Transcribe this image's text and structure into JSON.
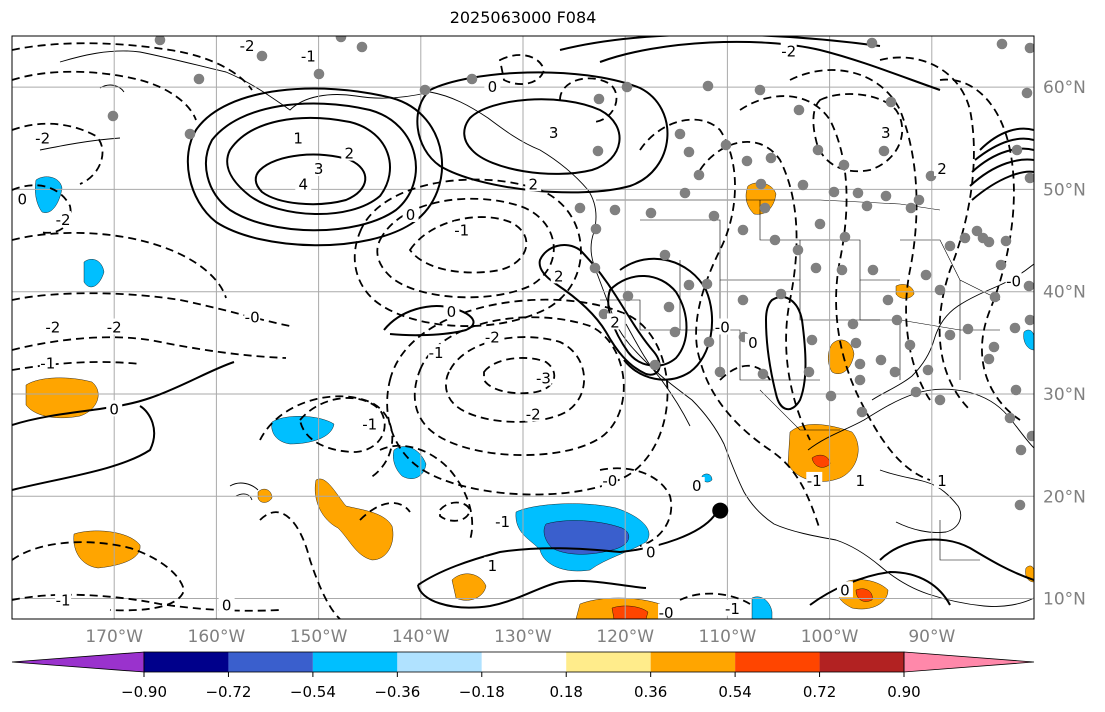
{
  "map": {
    "title": "2025063000 F084",
    "lon_ticks": [
      {
        "label": "170°W",
        "lon": -170
      },
      {
        "label": "160°W",
        "lon": -160
      },
      {
        "label": "150°W",
        "lon": -150
      },
      {
        "label": "140°W",
        "lon": -140
      },
      {
        "label": "130°W",
        "lon": -130
      },
      {
        "label": "120°W",
        "lon": -120
      },
      {
        "label": "110°W",
        "lon": -110
      },
      {
        "label": "100°W",
        "lon": -100
      },
      {
        "label": "90°W",
        "lon": -90
      }
    ],
    "lat_ticks": [
      {
        "label": "60°N",
        "lat": 60
      },
      {
        "label": "50°N",
        "lat": 50
      },
      {
        "label": "40°N",
        "lat": 40
      },
      {
        "label": "30°N",
        "lat": 30
      },
      {
        "label": "20°N",
        "lat": 20
      },
      {
        "label": "10°N",
        "lat": 10
      }
    ],
    "extent": {
      "lon_min": -180,
      "lon_max": -80,
      "lat_min": 8,
      "lat_max": 65
    },
    "tick_color": "#808080",
    "storm_marker": {
      "lon": -110.7,
      "lat": 18.6,
      "color": "#000000"
    },
    "contour_labels": [
      {
        "text": "-2",
        "lon": -157,
        "lat": 64
      },
      {
        "text": "-2",
        "lon": -104,
        "lat": 63.5
      },
      {
        "text": "-1",
        "lon": -151,
        "lat": 63
      },
      {
        "text": "0",
        "lon": -133,
        "lat": 60
      },
      {
        "text": "3",
        "lon": -127,
        "lat": 55.5
      },
      {
        "text": "-2",
        "lon": -177,
        "lat": 55
      },
      {
        "text": "1",
        "lon": -152,
        "lat": 55
      },
      {
        "text": "2",
        "lon": -147,
        "lat": 53.5
      },
      {
        "text": "3",
        "lon": -150,
        "lat": 52
      },
      {
        "text": "4",
        "lon": -151.5,
        "lat": 50.5
      },
      {
        "text": "2",
        "lon": -129,
        "lat": 50.5
      },
      {
        "text": "3",
        "lon": -94.5,
        "lat": 55.5
      },
      {
        "text": "0",
        "lon": -179,
        "lat": 49
      },
      {
        "text": "-2",
        "lon": -175,
        "lat": 47
      },
      {
        "text": "0",
        "lon": -141,
        "lat": 47.5
      },
      {
        "text": "-1",
        "lon": -136,
        "lat": 46
      },
      {
        "text": "2",
        "lon": -126.5,
        "lat": 41.5
      },
      {
        "text": "0",
        "lon": -137,
        "lat": 38
      },
      {
        "text": "-0",
        "lon": -156.5,
        "lat": 37.5
      },
      {
        "text": "-2",
        "lon": -176,
        "lat": 36.5
      },
      {
        "text": "-2",
        "lon": -170,
        "lat": 36.5
      },
      {
        "text": "-1",
        "lon": -176.5,
        "lat": 33
      },
      {
        "text": "-1",
        "lon": -138.5,
        "lat": 34
      },
      {
        "text": "-2",
        "lon": -133,
        "lat": 35.5
      },
      {
        "text": "-3",
        "lon": -128,
        "lat": 31.5
      },
      {
        "text": "-2",
        "lon": -129,
        "lat": 28
      },
      {
        "text": "0",
        "lon": -170,
        "lat": 28.5
      },
      {
        "text": "-1",
        "lon": -145,
        "lat": 27
      },
      {
        "text": "2",
        "lon": -121,
        "lat": 37
      },
      {
        "text": "0",
        "lon": -107.5,
        "lat": 35
      },
      {
        "text": "-0",
        "lon": -121.5,
        "lat": 21.5
      },
      {
        "text": "0",
        "lon": -113,
        "lat": 21
      },
      {
        "text": "-1",
        "lon": -101.5,
        "lat": 21.5
      },
      {
        "text": "1",
        "lon": -97,
        "lat": 21.5
      },
      {
        "text": "1",
        "lon": -89,
        "lat": 21.5
      },
      {
        "text": "-1",
        "lon": -132,
        "lat": 17.5
      },
      {
        "text": "0",
        "lon": -117.5,
        "lat": 14.5
      },
      {
        "text": "1",
        "lon": -133,
        "lat": 13.2
      },
      {
        "text": "-1",
        "lon": -175,
        "lat": 9.8
      },
      {
        "text": "0",
        "lon": -159,
        "lat": 9.3
      },
      {
        "text": "-0",
        "lon": -116,
        "lat": 8.6
      },
      {
        "text": "-1",
        "lon": -109.5,
        "lat": 9
      },
      {
        "text": "0",
        "lon": -98.5,
        "lat": 10.8
      },
      {
        "text": "2",
        "lon": -89,
        "lat": 52
      },
      {
        "text": "-0",
        "lon": -82,
        "lat": 41
      },
      {
        "text": "-0",
        "lon": -110.5,
        "lat": 36.5
      }
    ]
  },
  "colorbar": {
    "colors": [
      "#9a32cd",
      "#00008b",
      "#3a5fcd",
      "#00bfff",
      "#b0e2ff",
      "#ffffff",
      "#ffec8b",
      "#ffa500",
      "#ff4500",
      "#b22222",
      "#ff88aa"
    ],
    "tick_labels": [
      "−0.90",
      "−0.72",
      "−0.54",
      "−0.36",
      "−0.18",
      "0.18",
      "0.36",
      "0.54",
      "0.72",
      "0.90"
    ]
  }
}
